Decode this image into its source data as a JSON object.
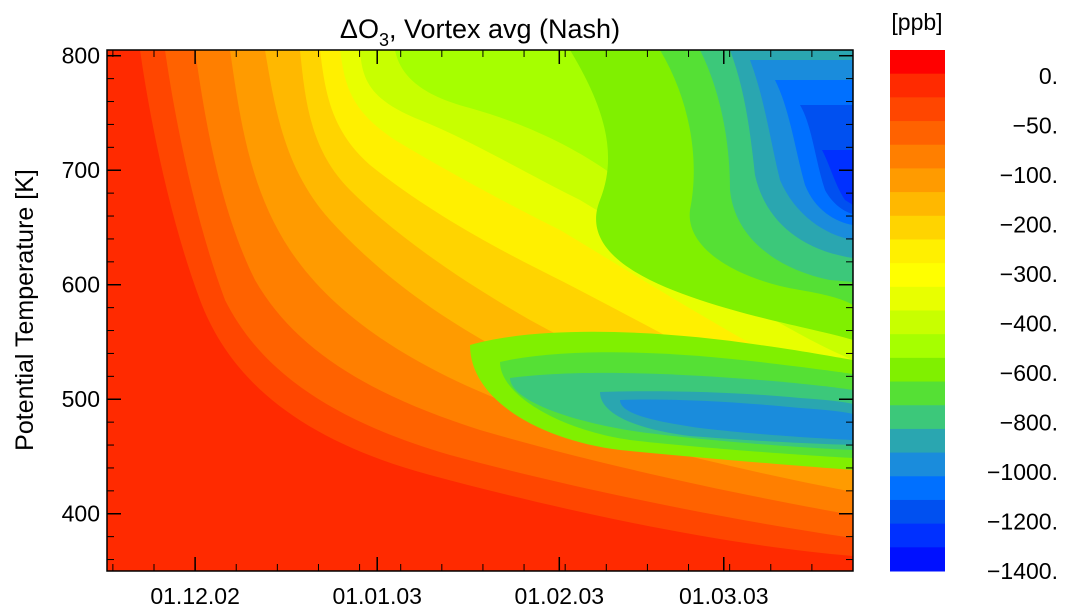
{
  "chart_data": {
    "type": "heatmap",
    "title_main": "ΔO",
    "title_sub": "3",
    "title_rest": ", Vortex avg (Nash)",
    "ylabel": "Potential Temperature [K]",
    "xlabel": "",
    "x_ticks": [
      "01.12.02",
      "01.01.03",
      "01.02.03",
      "01.03.03"
    ],
    "x_range": [
      "2002-11-16",
      "2003-03-23"
    ],
    "ylim": [
      350,
      805
    ],
    "y_ticks": [
      400,
      500,
      600,
      700,
      800
    ],
    "colorbar": {
      "unit": "[ppb]",
      "labels": [
        "0.",
        "−50.",
        "−100.",
        "−200.",
        "−300.",
        "−400.",
        "−600.",
        "−800.",
        "−1000.",
        "−1200.",
        "−1400."
      ],
      "colors": [
        "#ff0000",
        "#ff2a00",
        "#ff4600",
        "#ff6200",
        "#ff7f00",
        "#ff9b00",
        "#ffb800",
        "#ffd400",
        "#fff000",
        "#ffff00",
        "#e8ff00",
        "#c8ff00",
        "#a6ff00",
        "#80f000",
        "#55e035",
        "#3cc87a",
        "#2aa6b0",
        "#1a8cdc",
        "#0070ff",
        "#0050f0",
        "#0030ff",
        "#0010ff"
      ]
    },
    "contour_description": "Ozone loss increases from 0 ppb (Nov, lower levels) to about -1300 ppb (March, 650-750 K and 450-480 K)"
  }
}
